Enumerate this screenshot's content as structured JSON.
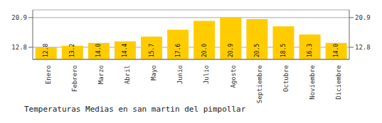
{
  "chart_data": {
    "type": "bar",
    "title": "Temperaturas Medias en san martin del pimpollar",
    "categories": [
      "Enero",
      "Febrero",
      "Marzo",
      "Abril",
      "Mayo",
      "Junio",
      "Julio",
      "Agosto",
      "Septiembre",
      "Octubre",
      "Noviembre",
      "Diciembre"
    ],
    "values": [
      12.8,
      13.2,
      14.0,
      14.4,
      15.7,
      17.6,
      20.0,
      20.9,
      20.5,
      18.5,
      16.3,
      14.0
    ],
    "value_labels": [
      "12.8",
      "13.2",
      "14.0",
      "14.4",
      "15.7",
      "17.6",
      "20.0",
      "20.9",
      "20.5",
      "18.5",
      "16.3",
      "14.0"
    ],
    "data_labels": true,
    "color": "#FFCC00",
    "ylim": [
      9.5,
      23.0
    ],
    "yticks": [
      12.8,
      20.9
    ],
    "y2lim": [
      9.5,
      23.0
    ],
    "y2ticks": [
      12.8,
      20.9
    ],
    "grid": true
  }
}
